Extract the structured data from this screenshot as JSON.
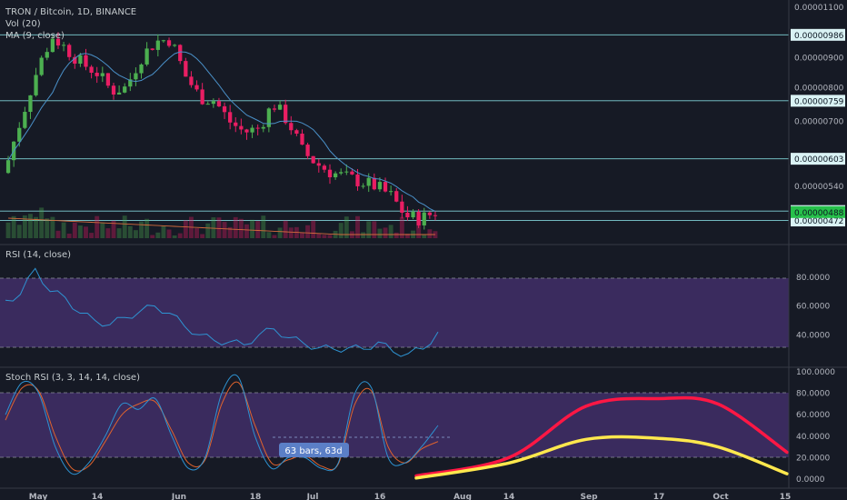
{
  "header": {
    "symbol_line": "TRON / Bitcoin, 1D, BINANCE",
    "vol_label": "Vol (20)",
    "ma_label": "MA (9, close)"
  },
  "rsi_panel": {
    "label": "RSI (14, close)"
  },
  "stoch_panel": {
    "label": "Stoch RSI (3, 3, 14, 14, close)"
  },
  "measure_badge": {
    "text": "63 bars, 63d"
  },
  "colors": {
    "background": "#161a25",
    "up_candle": "#4caf50",
    "down_candle": "#e91e63",
    "ma_line": "#4a90c8",
    "hline": "#7fd1d6",
    "rsi_line": "#2e93d2",
    "rsi_band": "#3a2b5e",
    "stoch_k": "#2e93d2",
    "stoch_d": "#e0632d",
    "forecast_red": "#ff1744",
    "forecast_yellow": "#ffe84d",
    "last_price_tag": "#26c04a"
  },
  "chart_data": [
    {
      "type": "candlestick",
      "title": "TRON / Bitcoin, 1D, BINANCE",
      "ylim": [
        4.4e-06,
        1.1e-05
      ],
      "y_scale": "log",
      "y_ticks": [
        "0.00001100",
        "0.00000900",
        "0.00000800",
        "0.00000700",
        "0.00000540"
      ],
      "x_ticks": [
        "May",
        "14",
        "Jun",
        "18",
        "Jul",
        "16",
        "Aug",
        "14",
        "Sep",
        "17",
        "Oct",
        "15"
      ],
      "series": [
        {
          "name": "MA (9, close)",
          "type": "line"
        },
        {
          "name": "Vol (20)",
          "type": "bar"
        }
      ],
      "horizontal_levels": [
        "0.00000986",
        "0.00000759",
        "0.00000603",
        "0.00000490",
        "0.00000472"
      ],
      "last_price": "0.00000488",
      "close_approx": [
        6e-06,
        7.2e-06,
        8.6e-06,
        9.8e-06,
        9.3e-06,
        8.8e-06,
        8.5e-06,
        7.9e-06,
        8e-06,
        9e-06,
        9.6e-06,
        9.7e-06,
        8.4e-06,
        7.7e-06,
        7.6e-06,
        7e-06,
        6.7e-06,
        6.8e-06,
        7.5e-06,
        7e-06,
        6.2e-06,
        5.9e-06,
        5.7e-06,
        5.6e-06,
        5.5e-06,
        5.4e-06,
        5.2e-06,
        4.8e-06,
        4.75e-06,
        4.88e-06
      ]
    },
    {
      "type": "line",
      "title": "RSI (14, close)",
      "ylim": [
        20,
        90
      ],
      "y_ticks": [
        80,
        60,
        40
      ],
      "bands": [
        30,
        70
      ],
      "values": [
        64,
        68,
        86,
        70,
        66,
        55,
        50,
        47,
        52,
        56,
        60,
        55,
        46,
        40,
        36,
        35,
        33,
        40,
        44,
        38,
        34,
        31,
        30,
        31,
        30,
        35,
        28,
        27,
        30,
        42
      ]
    },
    {
      "type": "line",
      "title": "Stoch RSI (3, 3, 14, 14, close)",
      "ylim": [
        0,
        100
      ],
      "y_ticks": [
        100,
        80,
        60,
        40,
        20,
        0
      ],
      "bands": [
        20,
        80
      ],
      "series": [
        {
          "values": [
            60,
            90,
            80,
            30,
            5,
            15,
            40,
            70,
            65,
            75,
            40,
            10,
            20,
            80,
            95,
            40,
            10,
            20,
            20,
            10,
            15,
            80,
            85,
            20,
            15,
            30,
            50
          ]
        },
        {
          "values": [
            55,
            85,
            82,
            40,
            10,
            12,
            35,
            60,
            70,
            72,
            45,
            15,
            18,
            70,
            90,
            50,
            15,
            18,
            22,
            12,
            14,
            70,
            82,
            30,
            15,
            28,
            35
          ]
        }
      ],
      "forecast": {
        "x": [
          "Aug",
          "14",
          "Sep",
          "17",
          "Oct",
          "15"
        ],
        "red": [
          3,
          20,
          68,
          75,
          70,
          25
        ],
        "yellow": [
          1,
          15,
          37,
          38,
          30,
          5
        ]
      }
    }
  ]
}
